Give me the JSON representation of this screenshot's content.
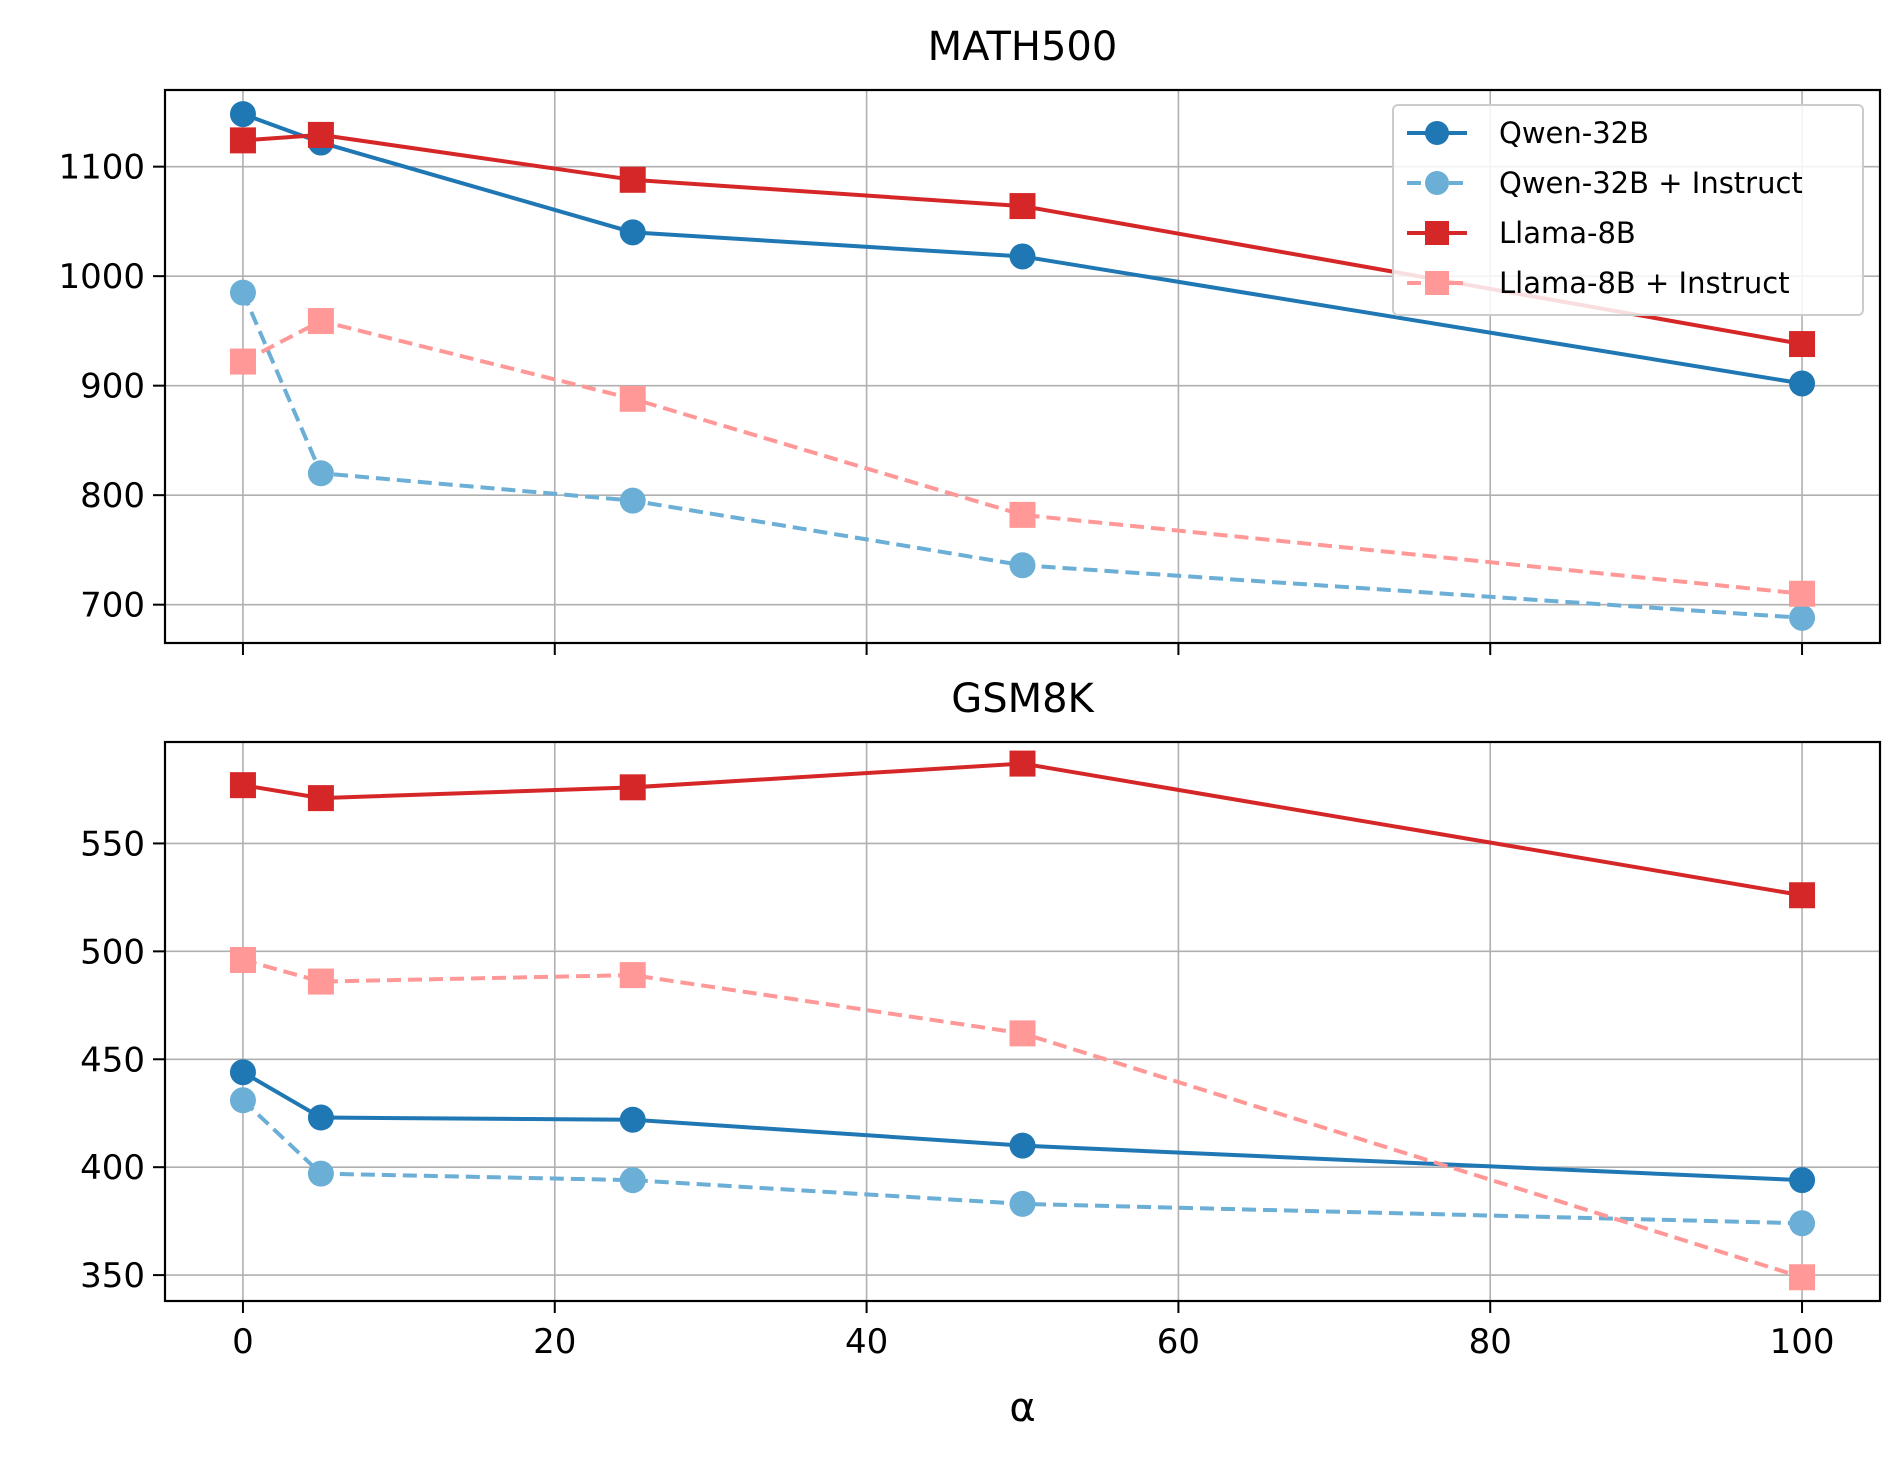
{
  "chart_data": [
    {
      "type": "line",
      "title": "MATH500",
      "xlabel": "",
      "ylabel": "",
      "x": [
        0,
        5,
        25,
        50,
        100
      ],
      "xlim": [
        -5,
        105
      ],
      "ylim": [
        665,
        1170
      ],
      "xticks": [
        0,
        20,
        40,
        60,
        80,
        100
      ],
      "yticks": [
        700,
        800,
        900,
        1000,
        1100
      ],
      "xtick_labels": [],
      "ytick_labels": [
        "700",
        "800",
        "900",
        "1000",
        "1100"
      ],
      "grid": true,
      "legend_position": "upper right",
      "series": [
        {
          "name": "Qwen-32B",
          "values": [
            1148,
            1122,
            1040,
            1018,
            902
          ],
          "color": "#1f77b4",
          "marker": "circle",
          "dashed": false
        },
        {
          "name": "Qwen-32B + Instruct",
          "values": [
            985,
            820,
            795,
            736,
            688
          ],
          "color": "#6baed6",
          "marker": "circle",
          "dashed": true
        },
        {
          "name": "Llama-8B",
          "values": [
            1124,
            1129,
            1088,
            1064,
            938
          ],
          "color": "#d62728",
          "marker": "square",
          "dashed": false
        },
        {
          "name": "Llama-8B + Instruct",
          "values": [
            922,
            959,
            888,
            782,
            710
          ],
          "color": "#ff9896",
          "marker": "square",
          "dashed": true
        }
      ]
    },
    {
      "type": "line",
      "title": "GSM8K",
      "xlabel": "α",
      "ylabel": "",
      "x": [
        0,
        5,
        25,
        50,
        100
      ],
      "xlim": [
        -5,
        105
      ],
      "ylim": [
        338,
        597
      ],
      "xticks": [
        0,
        20,
        40,
        60,
        80,
        100
      ],
      "yticks": [
        350,
        400,
        450,
        500,
        550
      ],
      "xtick_labels": [
        "0",
        "20",
        "40",
        "60",
        "80",
        "100"
      ],
      "ytick_labels": [
        "350",
        "400",
        "450",
        "500",
        "550"
      ],
      "grid": true,
      "series": [
        {
          "name": "Qwen-32B",
          "values": [
            444,
            423,
            422,
            410,
            394
          ],
          "color": "#1f77b4",
          "marker": "circle",
          "dashed": false
        },
        {
          "name": "Qwen-32B + Instruct",
          "values": [
            431,
            397,
            394,
            383,
            374
          ],
          "color": "#6baed6",
          "marker": "circle",
          "dashed": true
        },
        {
          "name": "Llama-8B",
          "values": [
            577,
            571,
            576,
            587,
            526
          ],
          "color": "#d62728",
          "marker": "square",
          "dashed": false
        },
        {
          "name": "Llama-8B + Instruct",
          "values": [
            496,
            486,
            489,
            462,
            349
          ],
          "color": "#ff9896",
          "marker": "square",
          "dashed": true
        }
      ]
    }
  ]
}
